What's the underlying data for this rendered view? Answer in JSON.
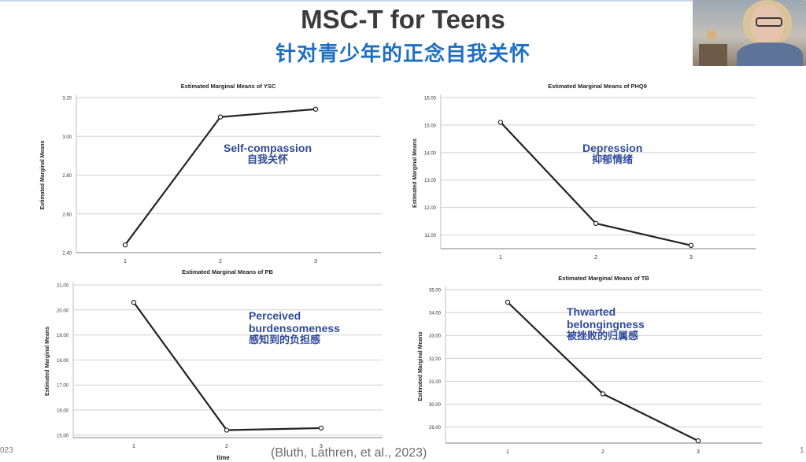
{
  "slide": {
    "title": "MSC-T for Teens",
    "subtitle": "针对青少年的正念自我关怀",
    "citation": "(Bluth, Lathren, et al., 2023)",
    "corner_left": "023",
    "corner_right": "1"
  },
  "colors": {
    "line": "#222222",
    "grid": "#cfcfcf",
    "annotation": "#2f4a99",
    "subtitle": "#1f6fc1"
  },
  "chart_data": [
    {
      "type": "line",
      "title": "Estimated Marginal Means of YSC",
      "ylabel": "Estimated Marginal Means",
      "xlabel": "",
      "categories": [
        "1",
        "2",
        "3"
      ],
      "values": [
        2.44,
        3.1,
        3.14
      ],
      "ylim": [
        2.4,
        3.2
      ],
      "yticks": [
        "2.40",
        "2.60",
        "2.80",
        "3.00",
        "3.20"
      ],
      "annotation": [
        "Self-compassion",
        "自我关怀"
      ],
      "grid": true
    },
    {
      "type": "line",
      "title": "Estimated Marginal Means of PHQ9",
      "ylabel": "Estimated Marginal Means",
      "xlabel": "",
      "categories": [
        "1",
        "2",
        "3"
      ],
      "values": [
        15.1,
        11.42,
        10.62
      ],
      "ylim": [
        10.5,
        16.0
      ],
      "yticks": [
        "11.00",
        "12.00",
        "13.00",
        "14.00",
        "15.00",
        "16.00"
      ],
      "annotation": [
        "Depression",
        "抑郁情绪"
      ],
      "grid": true
    },
    {
      "type": "line",
      "title": "Estimated Marginal Means of PB",
      "ylabel": "Estimated Marginal Means",
      "xlabel": "time",
      "categories": [
        "1",
        "2",
        "3"
      ],
      "values": [
        20.3,
        15.2,
        15.28
      ],
      "ylim": [
        14.9,
        21.0
      ],
      "yticks": [
        "15.00",
        "16.00",
        "17.00",
        "18.00",
        "19.00",
        "20.00",
        "21.00"
      ],
      "annotation": [
        "Perceived",
        "burdensomeness",
        "感知到的负担感"
      ],
      "grid": true
    },
    {
      "type": "line",
      "title": "Estimated Marginal Means of TB",
      "ylabel": "Estimated Marginal Means",
      "xlabel": "",
      "categories": [
        "1",
        "2",
        "3"
      ],
      "values": [
        34.45,
        30.45,
        28.4
      ],
      "ylim": [
        28.3,
        35.0
      ],
      "yticks": [
        "29.00",
        "30.00",
        "31.00",
        "32.00",
        "33.00",
        "34.00",
        "35.00"
      ],
      "annotation": [
        "Thwarted",
        "belongingness",
        "被挫败的归属感"
      ],
      "grid": true
    }
  ]
}
